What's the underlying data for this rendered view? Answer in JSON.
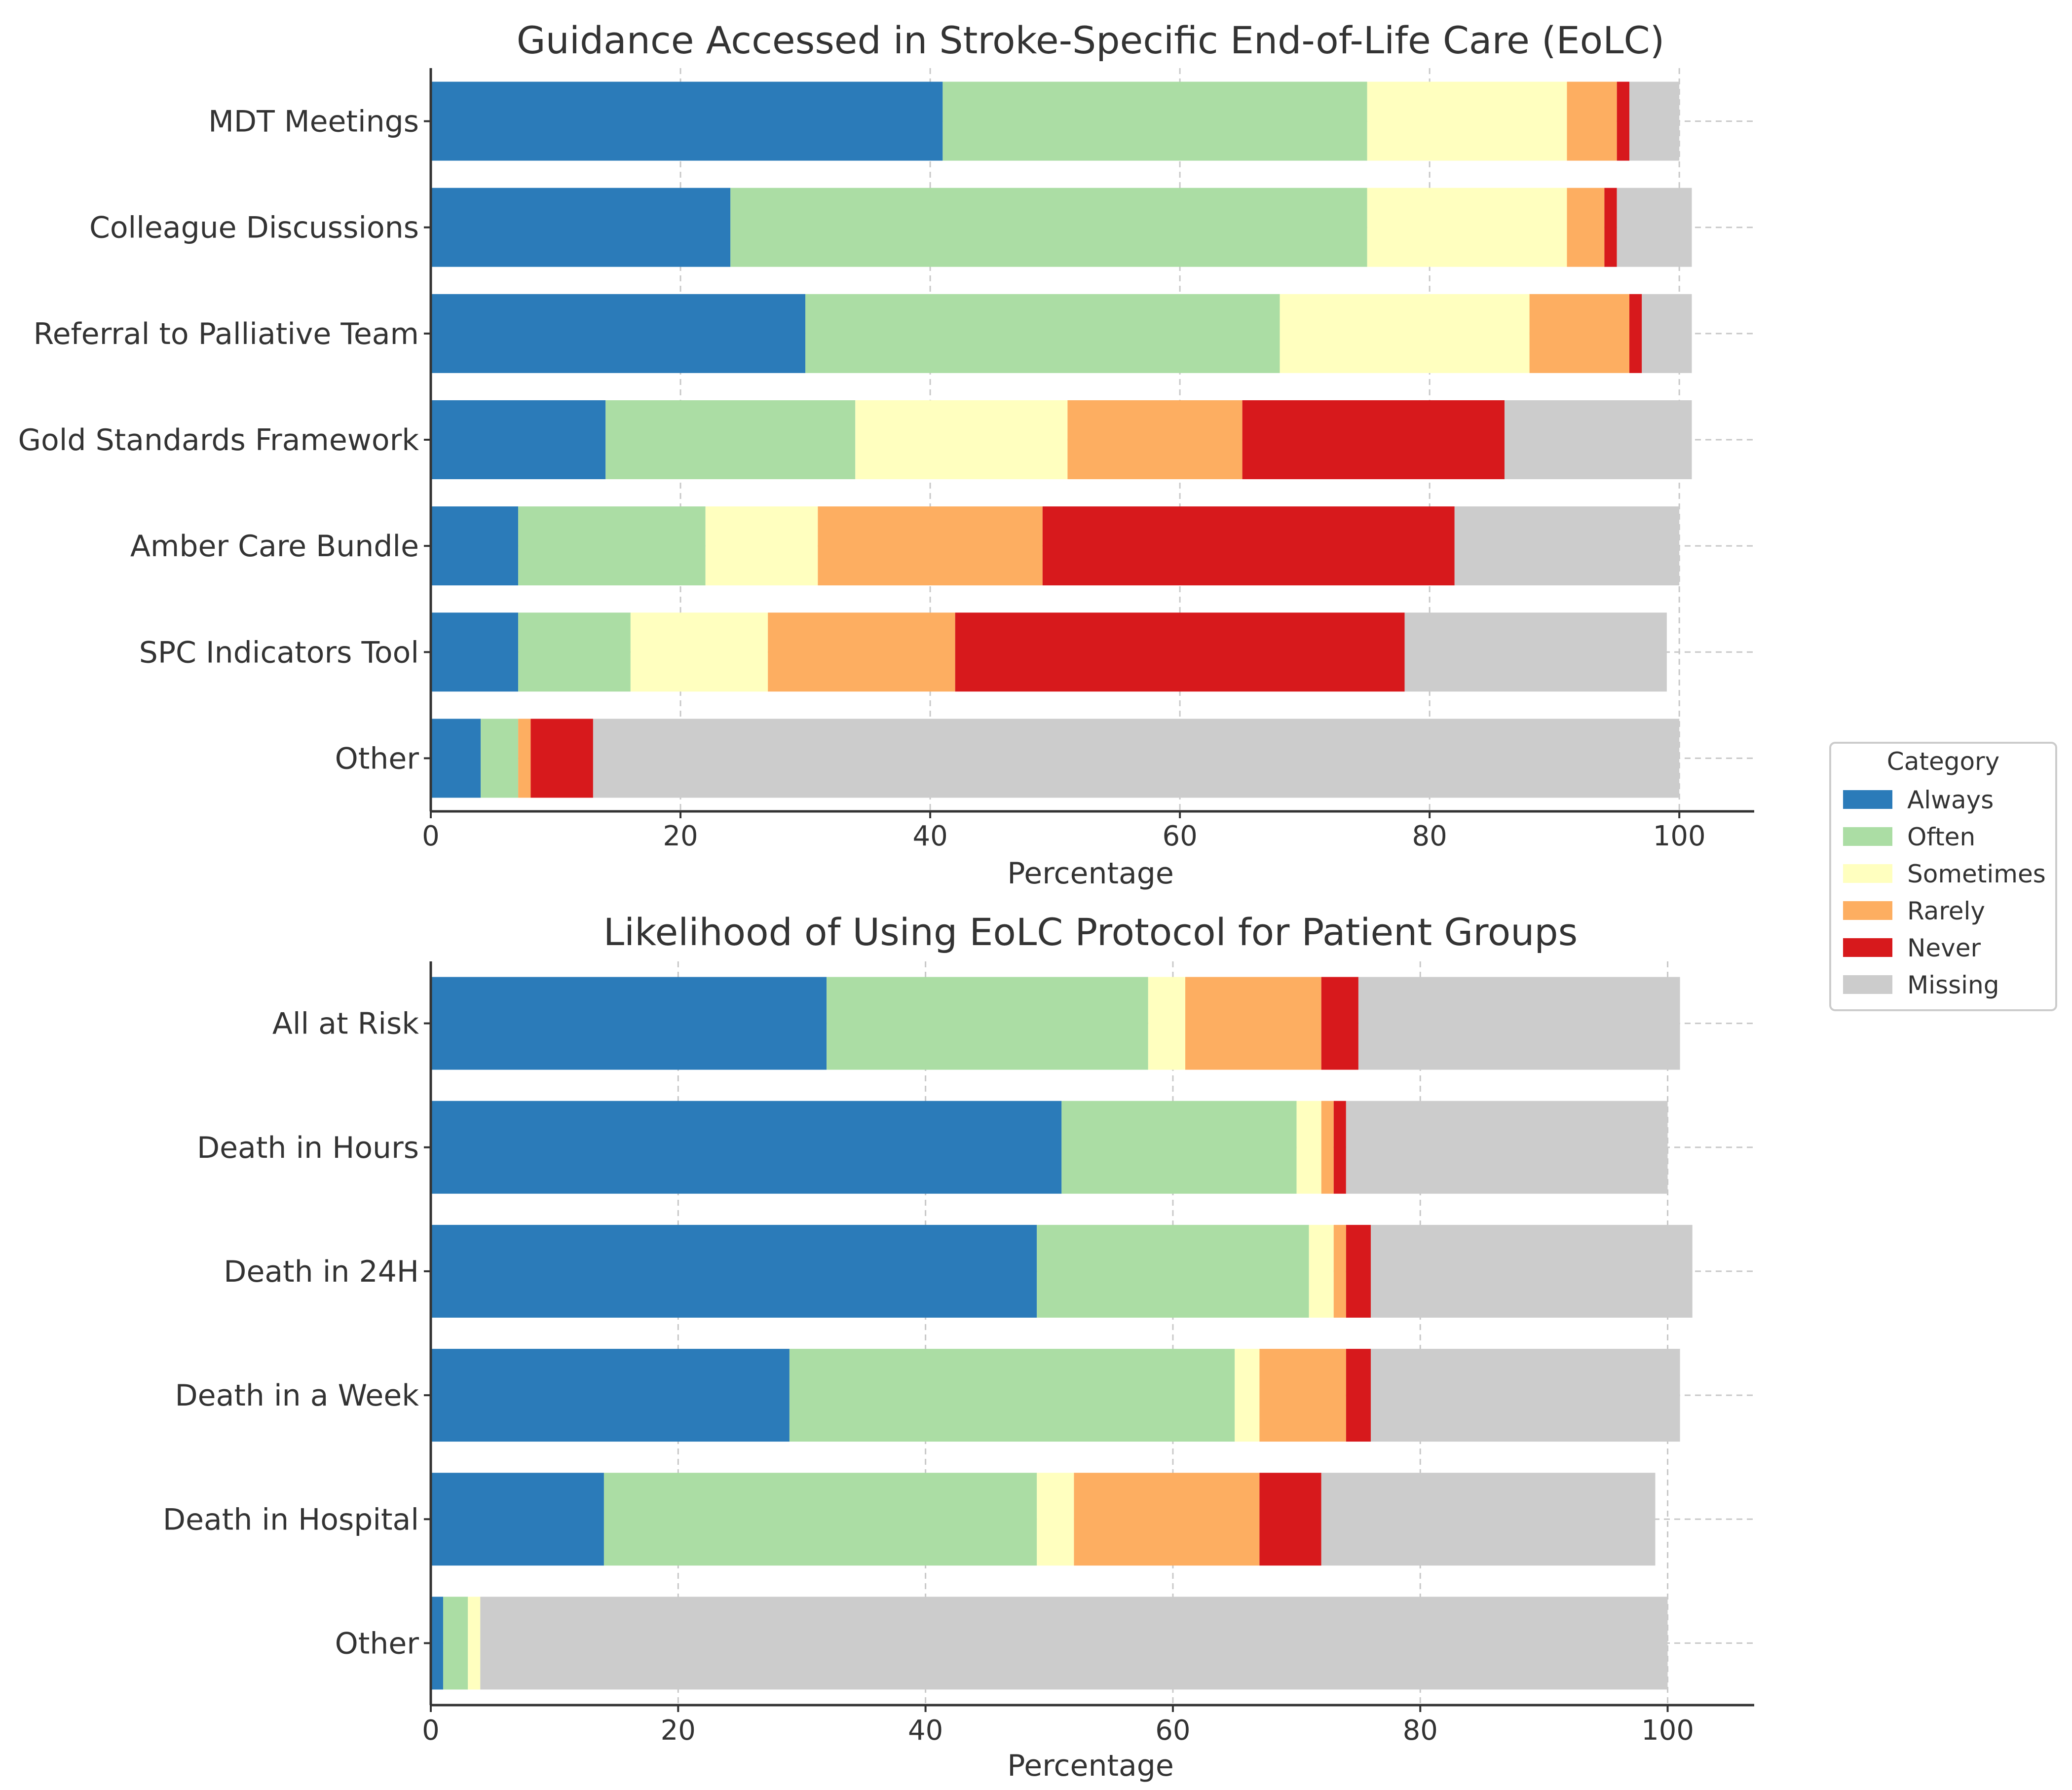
{
  "chart_data": [
    {
      "type": "bar",
      "orientation": "horizontal",
      "stacked": true,
      "title": "Guidance Accessed in Stroke-Specific End-of-Life Care (EoLC)",
      "xlabel": "Percentage",
      "ylabel": "",
      "xlim": [
        0,
        106
      ],
      "xticks": [
        0,
        20,
        40,
        60,
        80,
        100
      ],
      "grid": true,
      "categories": [
        "MDT Meetings",
        "Colleague Discussions",
        "Referral to Palliative Team",
        "Gold Standards Framework",
        "Amber Care Bundle",
        "SPC Indicators Tool",
        "Other"
      ],
      "series": [
        {
          "name": "Always",
          "values": [
            41,
            24,
            30,
            14,
            7,
            7,
            4
          ]
        },
        {
          "name": "Often",
          "values": [
            34,
            51,
            38,
            20,
            15,
            9,
            3
          ]
        },
        {
          "name": "Sometimes",
          "values": [
            16,
            16,
            20,
            17,
            9,
            11,
            0
          ]
        },
        {
          "name": "Rarely",
          "values": [
            4,
            3,
            8,
            14,
            18,
            15,
            1
          ]
        },
        {
          "name": "Never",
          "values": [
            1,
            1,
            1,
            21,
            33,
            36,
            5
          ]
        },
        {
          "name": "Missing",
          "values": [
            4,
            6,
            4,
            15,
            18,
            21,
            87
          ]
        }
      ]
    },
    {
      "type": "bar",
      "orientation": "horizontal",
      "stacked": true,
      "title": "Likelihood of Using EoLC Protocol for Patient Groups",
      "xlabel": "Percentage",
      "ylabel": "",
      "xlim": [
        0,
        107
      ],
      "xticks": [
        0,
        20,
        40,
        60,
        80,
        100
      ],
      "grid": true,
      "categories": [
        "All at Risk",
        "Death in Hours",
        "Death in 24H",
        "Death in a Week",
        "Death in Hospital",
        "Other"
      ],
      "series": [
        {
          "name": "Always",
          "values": [
            32,
            51,
            49,
            29,
            14,
            1
          ]
        },
        {
          "name": "Often",
          "values": [
            26,
            19,
            22,
            36,
            35,
            2
          ]
        },
        {
          "name": "Sometimes",
          "values": [
            3,
            2,
            2,
            2,
            3,
            1
          ]
        },
        {
          "name": "Rarely",
          "values": [
            11,
            1,
            1,
            7,
            15,
            0
          ]
        },
        {
          "name": "Never",
          "values": [
            3,
            1,
            2,
            2,
            5,
            0
          ]
        },
        {
          "name": "Missing",
          "values": [
            26,
            26,
            26,
            25,
            27,
            96
          ]
        }
      ]
    }
  ],
  "legend": {
    "title": "Category",
    "placement": "right",
    "items": [
      "Always",
      "Often",
      "Sometimes",
      "Rarely",
      "Never",
      "Missing"
    ]
  },
  "colors": {
    "Always": "#2b7bb9",
    "Often": "#abdda4",
    "Sometimes": "#ffffbf",
    "Rarely": "#fdae61",
    "Never": "#d7191c",
    "Missing": "#cccccc"
  }
}
